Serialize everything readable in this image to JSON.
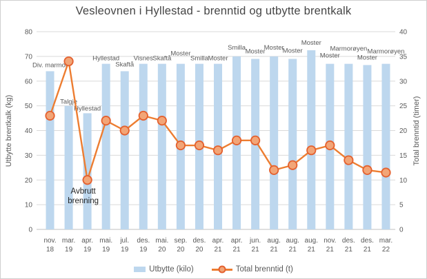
{
  "chart_data": {
    "type": "combo",
    "title": "Vesleovnen i Hyllestad - brenntid og utbytte brentkalk",
    "categories": [
      "nov. 18",
      "mar. 19",
      "apr. 19",
      "mai. 19",
      "jul. 19",
      "des. 19",
      "mai. 20",
      "sep. 20",
      "des. 20",
      "apr. 21",
      "apr. 21",
      "jun. 21",
      "aug. 21",
      "aug. 21",
      "aug. 21",
      "nov. 21",
      "des. 21",
      "des. 21",
      "mar. 22"
    ],
    "bar_labels": [
      "Div. marmor",
      "Talgje",
      "Hyllestad",
      "Hyllestad",
      "Skaftå",
      "Visnes",
      "Skaftå",
      "Moster",
      "Smilla",
      "Moster",
      "Smilla",
      "Moster",
      "Moster",
      "Moster",
      "Moster",
      "Moster",
      "Marmorøyen",
      "Moster",
      "Marmorøyen"
    ],
    "series": [
      {
        "name": "Utbytte (kilo)",
        "type": "bar",
        "axis": "left",
        "color": "#BDD7EE",
        "values": [
          64,
          50,
          47,
          67,
          64,
          67,
          67,
          67,
          67,
          67,
          70,
          69,
          70,
          69,
          72.5,
          67,
          67,
          66.5,
          67
        ]
      },
      {
        "name": "Total brenntid (t)",
        "type": "line",
        "axis": "right",
        "color": "#ED7D31",
        "marker_fill": "#F2A577",
        "marker_stroke": "#E4602E",
        "values": [
          23,
          34,
          10,
          22,
          20,
          23,
          22,
          17,
          17,
          16,
          18,
          18,
          12,
          13,
          16,
          17,
          14,
          12,
          11.5
        ]
      }
    ],
    "left_axis": {
      "title": "Utbytte brentkalk (kg)",
      "min": 0,
      "max": 80,
      "step": 10
    },
    "right_axis": {
      "title": "Total brenntid (timer)",
      "min": 0,
      "max": 40,
      "step": 5
    },
    "annotation": {
      "lines": [
        "Avbrutt",
        "brenning"
      ],
      "category_index": 2
    },
    "legend_position": "bottom",
    "grid": true,
    "colors": {
      "gridline": "#D9D9D9",
      "axis_line": "#BFBFBF",
      "tick_text": "#595959",
      "bar_label_text": "#595959",
      "annotation_text": "#1f1f1f"
    }
  }
}
